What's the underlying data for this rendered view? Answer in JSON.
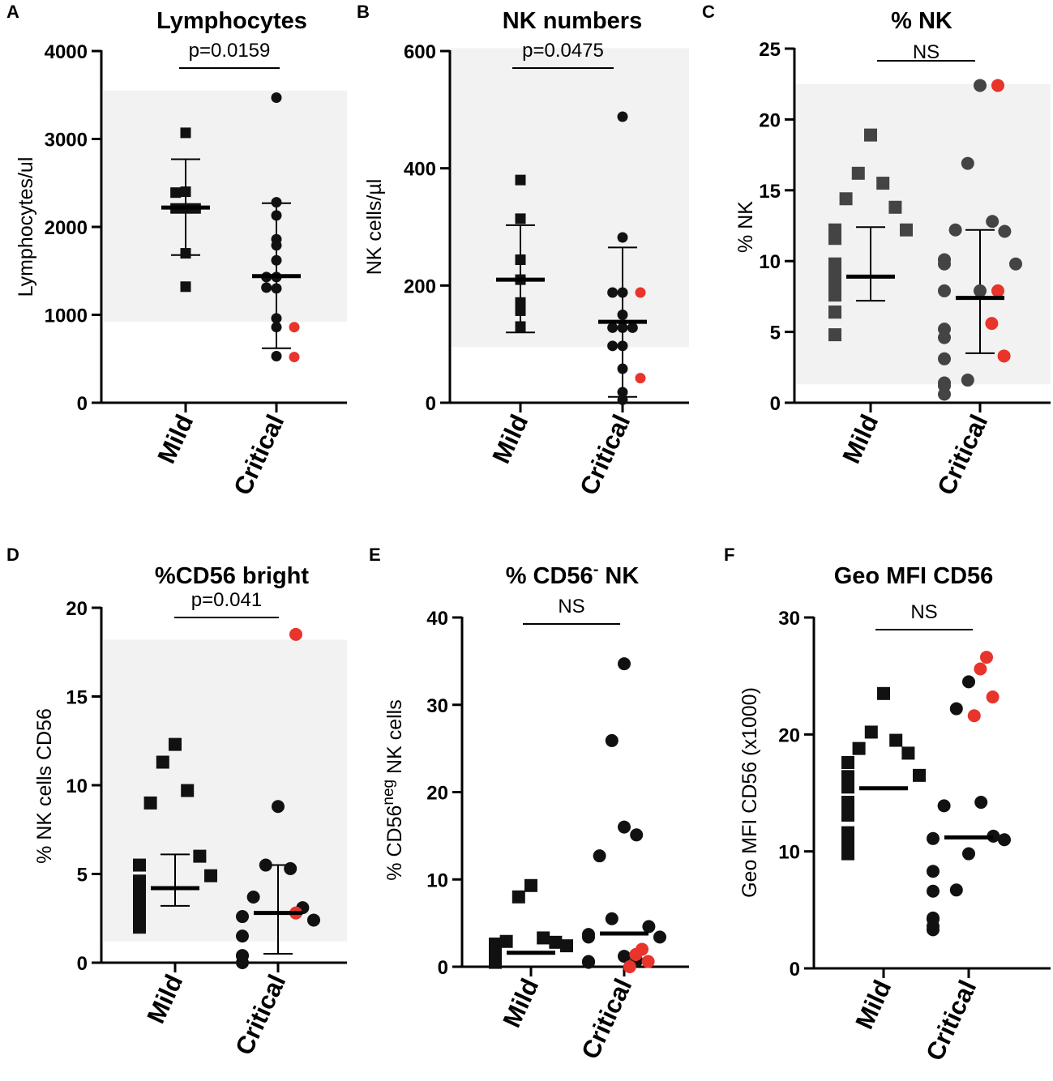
{
  "figure_name": "NK cell analysis figure",
  "colors": {
    "black": "#111111",
    "dark_grey": "#444444",
    "red": "#e8342b",
    "shade": "#f2f2f2"
  },
  "chart_data": [
    {
      "type": "scatter",
      "panel": "A",
      "title": "Lymphocytes",
      "ylabel": "Lymphocytes/ul",
      "ylim": [
        0,
        4000
      ],
      "yticks": [
        "0",
        "1000",
        "2000",
        "3000",
        "4000"
      ],
      "ytick_values": [
        0,
        1000,
        2000,
        3000,
        4000
      ],
      "categories": [
        "Mild",
        "Critical"
      ],
      "annotation": "p=0.0159",
      "shade_range": [
        920,
        3550
      ],
      "series": [
        {
          "name": "Mild",
          "marker": "square",
          "color": "black",
          "values": [
            3070,
            2400,
            2390,
            2210,
            2210,
            2210,
            1700,
            1320
          ],
          "mean": 2220,
          "err_low": 1680,
          "err_high": 2770
        },
        {
          "name": "Critical",
          "marker": "circle",
          "color": "black",
          "values": [
            3470,
            2280,
            2130,
            1860,
            1790,
            1620,
            1430,
            1430,
            1300,
            1310,
            960,
            860,
            530
          ],
          "red_values": [
            860,
            520
          ],
          "mean": 1440,
          "err_low": 620,
          "err_high": 2270
        }
      ]
    },
    {
      "type": "scatter",
      "panel": "B",
      "title": "NK numbers",
      "ylabel": "NK cells/µl",
      "ylim": [
        0,
        600
      ],
      "yticks": [
        "0",
        "200",
        "400",
        "600"
      ],
      "ytick_values": [
        0,
        200,
        400,
        600
      ],
      "categories": [
        "Mild",
        "Critical"
      ],
      "annotation": "p=0.0475",
      "shade_range": [
        95,
        605
      ],
      "series": [
        {
          "name": "Mild",
          "marker": "square",
          "color": "black",
          "values": [
            380,
            314,
            244,
            210,
            171,
            157,
            130
          ],
          "mean": 210,
          "err_low": 120,
          "err_high": 303
        },
        {
          "name": "Critical",
          "marker": "circle",
          "color": "black",
          "values": [
            488,
            282,
            188,
            188,
            150,
            128,
            128,
            128,
            97,
            97,
            58,
            18,
            5
          ],
          "red_values": [
            188,
            42
          ],
          "mean": 138,
          "err_low": 10,
          "err_high": 265
        }
      ]
    },
    {
      "type": "scatter",
      "panel": "C",
      "title": "% NK",
      "ylabel": "% NK",
      "ylim": [
        0,
        25
      ],
      "yticks": [
        "0",
        "5",
        "10",
        "15",
        "20",
        "25"
      ],
      "ytick_values": [
        0,
        5,
        10,
        15,
        20,
        25
      ],
      "categories": [
        "Mild",
        "Critical"
      ],
      "annotation": "NS",
      "shade_range": [
        1.3,
        22.5
      ],
      "series": [
        {
          "name": "Mild",
          "marker": "square",
          "color": "dark_grey",
          "values": [
            18.9,
            16.2,
            15.5,
            14.4,
            13.8,
            12.2,
            12.2,
            11.8,
            11.6,
            9.8,
            8.9,
            8.9,
            8.9,
            8.3,
            7.6,
            6.4,
            6.4,
            4.8
          ],
          "mean": 8.9,
          "err_low": 7.2,
          "err_high": 12.4
        },
        {
          "name": "Critical",
          "marker": "circle",
          "color": "dark_grey",
          "values": [
            22.4,
            16.9,
            12.8,
            12.2,
            12.1,
            10.1,
            9.8,
            9.8,
            7.9,
            7.9,
            5.2,
            4.6,
            3.1,
            1.6,
            1.4,
            1.2,
            0.6
          ],
          "red_values": [
            22.4,
            7.9,
            5.6,
            3.3
          ],
          "mean": 7.4,
          "err_low": 3.5,
          "err_high": 12.2
        }
      ]
    },
    {
      "type": "scatter",
      "panel": "D",
      "title": "%CD56 bright",
      "ylabel": "% NK cells CD56",
      "ylim": [
        0,
        20
      ],
      "yticks": [
        "0",
        "5",
        "10",
        "15",
        "20"
      ],
      "ytick_values": [
        0,
        5,
        10,
        15,
        20
      ],
      "categories": [
        "Mild",
        "Critical"
      ],
      "annotation": "p=0.041",
      "shade_range": [
        1.2,
        18.2
      ],
      "series": [
        {
          "name": "Mild",
          "marker": "square",
          "color": "black",
          "values": [
            12.3,
            11.3,
            9.7,
            9.0,
            6.0,
            5.5,
            4.9,
            4.6,
            3.9,
            3.8,
            3.7,
            3.6,
            3.6,
            3.6,
            3.2,
            2.8,
            2.2,
            2.1,
            2.0
          ],
          "mean": 4.2,
          "err_low": 3.2,
          "err_high": 6.1
        },
        {
          "name": "Critical",
          "marker": "circle",
          "color": "black",
          "values": [
            8.8,
            5.5,
            5.3,
            3.7,
            3.1,
            2.6,
            2.4,
            1.5,
            0.4,
            0.4,
            0.0
          ],
          "red_values": [
            18.5,
            2.8
          ],
          "mean": 2.8,
          "err_low": 0.5,
          "err_high": 5.5
        }
      ]
    },
    {
      "type": "scatter",
      "panel": "E",
      "title": "% CD56",
      "title_sup": "-",
      "title_suffix": " NK",
      "ylabel_prefix": "% CD56",
      "ylabel_sup": "neg",
      "ylabel_suffix": " NK cells",
      "ylim": [
        0,
        40
      ],
      "yticks": [
        "0",
        "10",
        "20",
        "30",
        "40"
      ],
      "ytick_values": [
        0,
        10,
        20,
        30,
        40
      ],
      "categories": [
        "Mild",
        "Critical"
      ],
      "annotation": "NS",
      "series": [
        {
          "name": "Mild",
          "marker": "square",
          "color": "black",
          "values": [
            9.3,
            8.0,
            3.3,
            2.9,
            2.8,
            2.6,
            2.4,
            2.3,
            2.0,
            1.8,
            1.6,
            1.5,
            1.3,
            1.0,
            0.9,
            0.8,
            0.7,
            0.5
          ],
          "mean": 1.6
        },
        {
          "name": "Critical",
          "marker": "circle",
          "color": "black",
          "values": [
            34.7,
            25.9,
            16.0,
            15.1,
            12.7,
            5.5,
            4.6,
            3.7,
            3.4,
            3.4,
            1.2,
            0.7,
            0.6,
            0.5
          ],
          "red_values": [
            2.0,
            1.4,
            0.6,
            0.0
          ],
          "mean": 3.8
        }
      ]
    },
    {
      "type": "scatter",
      "panel": "F",
      "title": "Geo MFI CD56",
      "ylabel": "Geo MFI CD56 (x1000)",
      "ylim": [
        0,
        30
      ],
      "yticks": [
        "0",
        "10",
        "20",
        "30"
      ],
      "ytick_values": [
        0,
        10,
        20,
        30
      ],
      "categories": [
        "Mild",
        "Critical"
      ],
      "annotation": "NS",
      "series": [
        {
          "name": "Mild",
          "marker": "square",
          "color": "black",
          "values": [
            23.5,
            20.2,
            19.5,
            18.8,
            18.4,
            17.6,
            16.5,
            16.4,
            15.5,
            14.2,
            13.1,
            11.6,
            11.0,
            10.9,
            10.8,
            10.5,
            10.0,
            9.8
          ],
          "mean": 15.4
        },
        {
          "name": "Critical",
          "marker": "circle",
          "color": "black",
          "values": [
            24.5,
            22.2,
            14.2,
            13.9,
            11.3,
            11.1,
            11.0,
            9.8,
            8.3,
            6.7,
            6.6,
            4.3,
            4.2,
            3.6,
            3.3
          ],
          "red_values": [
            26.6,
            25.6,
            23.2,
            21.6
          ],
          "mean": 11.2
        }
      ]
    }
  ]
}
